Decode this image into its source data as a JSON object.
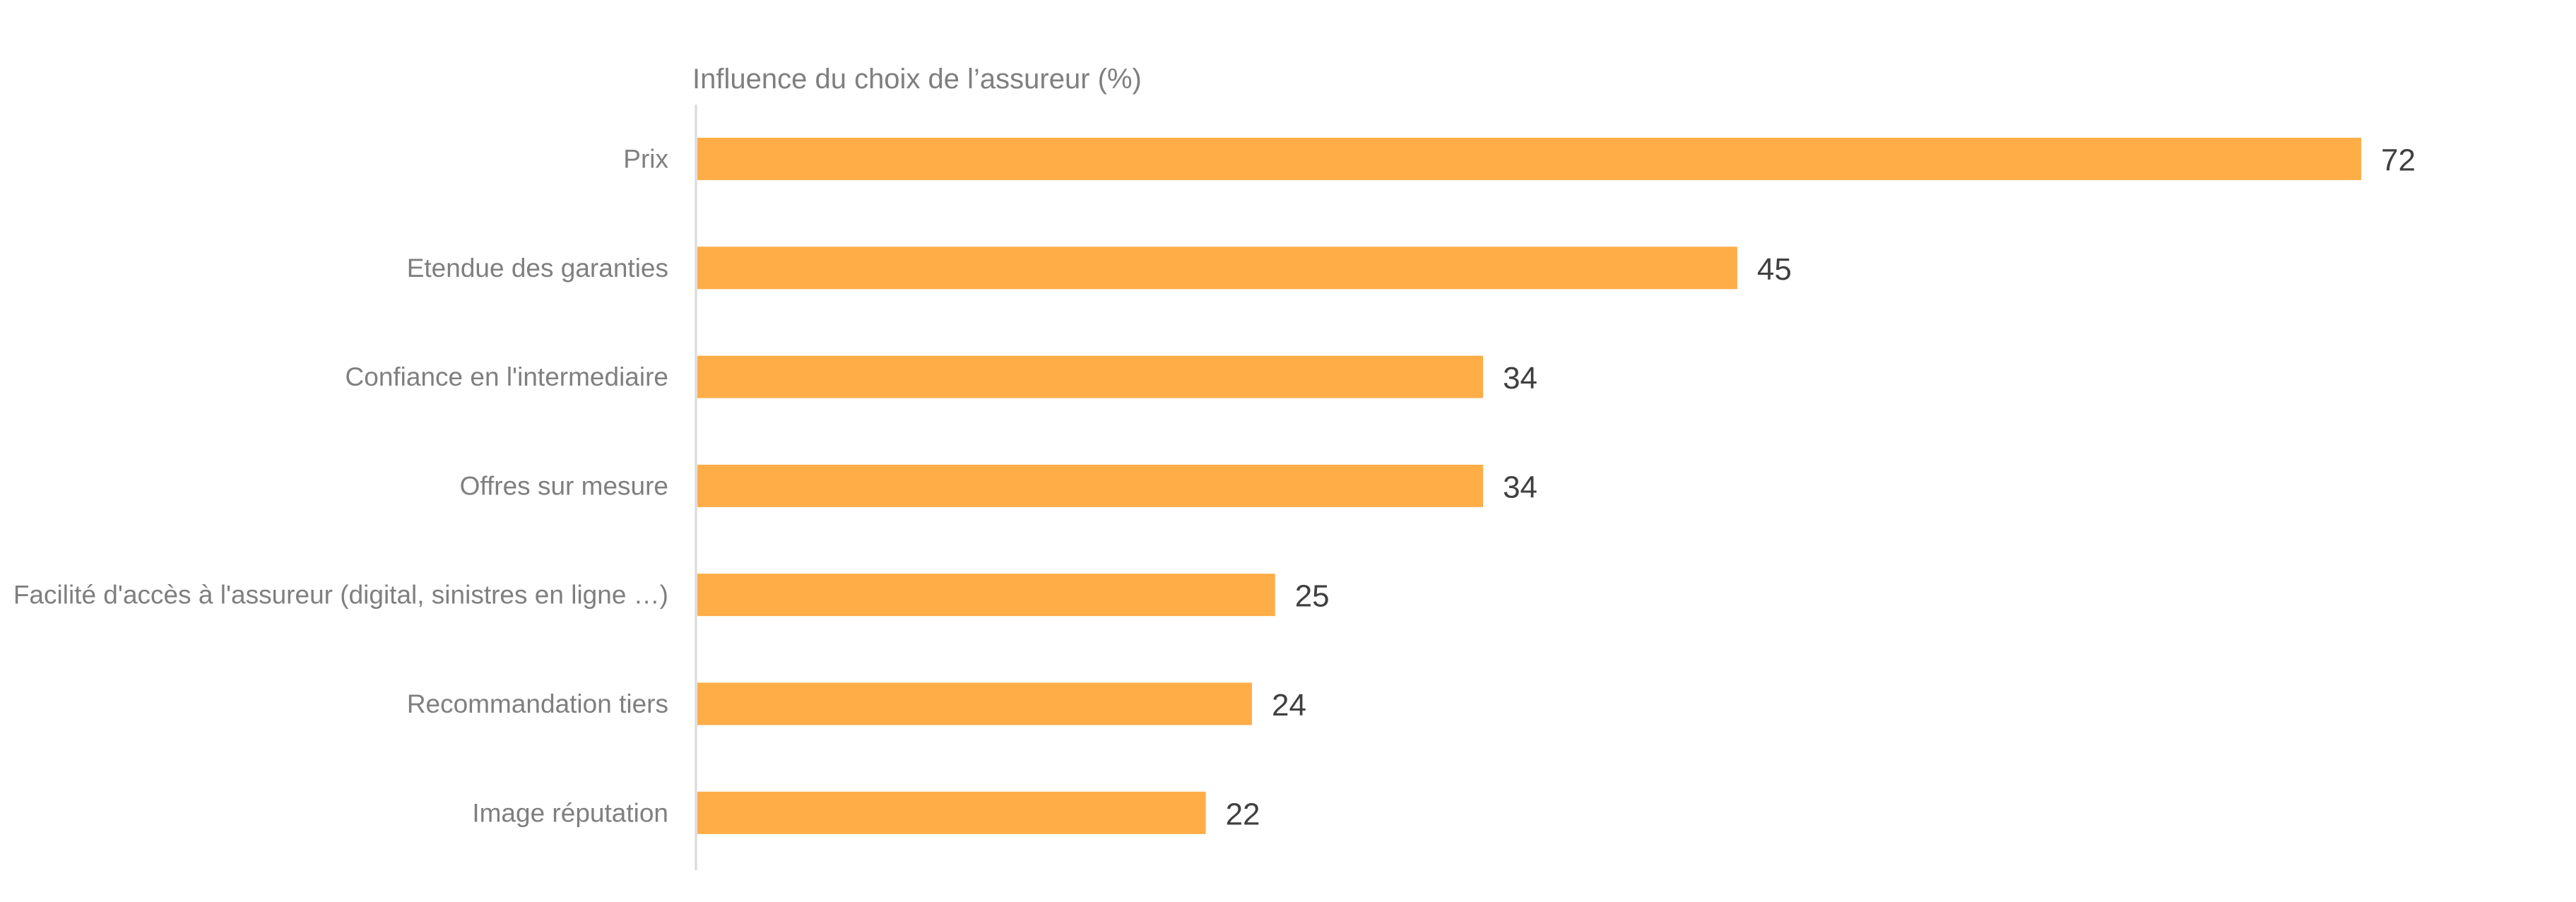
{
  "chart_data": {
    "type": "bar",
    "orientation": "horizontal",
    "title": "Influence du choix de l’assureur (%)",
    "xlabel": "",
    "ylabel": "",
    "categories": [
      "Prix",
      "Etendue des garanties",
      "Confiance en l'intermediaire",
      "Offres sur mesure",
      "Facilité d'accès à l'assureur (digital, sinistres en ligne …)",
      "Recommandation tiers",
      "Image réputation"
    ],
    "values": [
      72,
      45,
      34,
      34,
      25,
      24,
      22
    ],
    "xlim": [
      0,
      72
    ],
    "grid": false,
    "legend": "none",
    "colors": {
      "bar": "#FFAD47",
      "axis": "#d9d9d9",
      "category_text": "#7f7f7f",
      "value_text": "#404040",
      "title_text": "#7f7f7f"
    }
  }
}
